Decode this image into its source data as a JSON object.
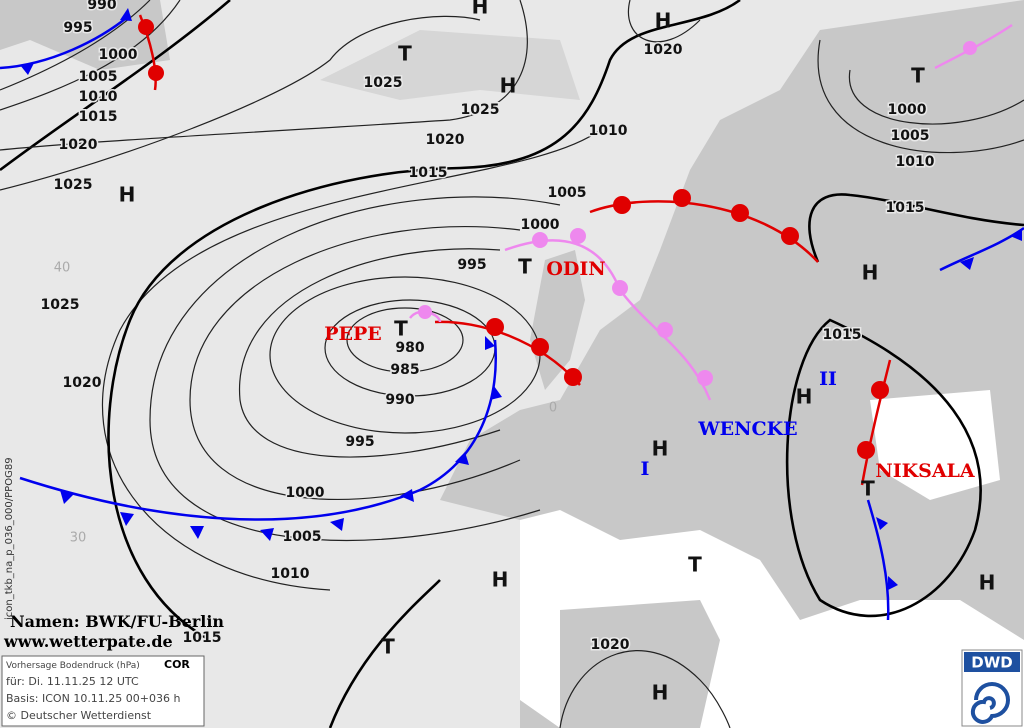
{
  "map": {
    "isobar_labels": [
      990,
      995,
      1000,
      1005,
      1010,
      1015,
      1020,
      1025,
      1025,
      1025,
      1020,
      1015,
      1020,
      1010,
      1005,
      1000,
      995,
      980,
      985,
      990,
      995,
      1000,
      1005,
      1010,
      1015,
      1025,
      1020,
      1020,
      1000,
      1005,
      1010,
      1015,
      1015
    ],
    "pressure_centers": [
      "H",
      "H",
      "T",
      "H",
      "T",
      "H",
      "T",
      "T",
      "H",
      "H",
      "H",
      "T",
      "H",
      "T",
      "H",
      "T",
      "H"
    ],
    "systems": [
      "PEPE",
      "ODIN",
      "WENCKE",
      "NIKSALA",
      "I",
      "II"
    ],
    "grid_labels": [
      "40",
      "30",
      "0"
    ],
    "footer": {
      "names": "Namen: BWK/FU-Berlin",
      "url": "www.wetterpate.de"
    },
    "info_box": {
      "title": "Vorhersage Bodendruck (hPa)",
      "flag": "COR",
      "valid": "für:  Di. 11.11.25  12 UTC",
      "base": "Basis: ICON  10.11.25 00+036 h",
      "copyright": "© Deutscher Wetterdienst"
    },
    "logo": "DWD",
    "product_id": "icon_tkb_na_p_036_000/PPOG89"
  }
}
